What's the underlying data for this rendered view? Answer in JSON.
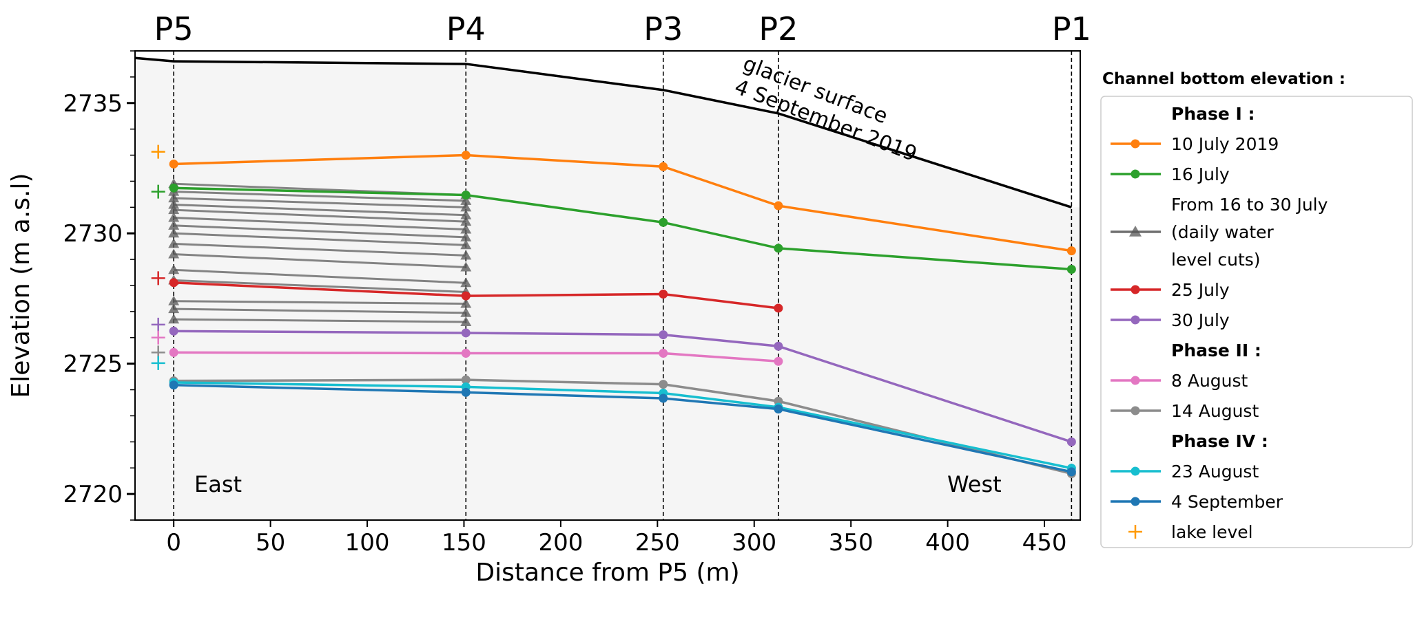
{
  "chart_data": {
    "type": "line",
    "xlabel": "Distance from P5 (m)",
    "ylabel": "Elevation (m a.s.l)",
    "xlim": [
      -20,
      468.5
    ],
    "ylim": [
      2719,
      2737
    ],
    "xticks": [
      0,
      50,
      100,
      150,
      200,
      250,
      300,
      350,
      400,
      450
    ],
    "yticks": [
      2720,
      2725,
      2730,
      2735
    ],
    "grid": false,
    "sections": [
      {
        "label": "P5",
        "x": 0
      },
      {
        "label": "P4",
        "x": 151
      },
      {
        "label": "P3",
        "x": 253
      },
      {
        "label": "P2",
        "x": 312.5
      },
      {
        "label": "P1",
        "x": 464
      }
    ],
    "annotations": {
      "glacier": [
        "glacier surface",
        "4 September 2019"
      ],
      "east": "East",
      "west": "West"
    },
    "glacier_surface": {
      "x": [
        -20,
        0,
        151,
        253,
        312.5,
        464
      ],
      "y": [
        2736.73,
        2736.6,
        2736.5,
        2735.5,
        2734.6,
        2731.0
      ],
      "color": "#000000"
    },
    "legend": {
      "title": "Channel bottom elevation :",
      "placement": "outside-right",
      "entries": [
        {
          "type": "header",
          "label": "Phase I :"
        },
        {
          "type": "series",
          "ref": 0
        },
        {
          "type": "series",
          "ref": 1
        },
        {
          "type": "cuts",
          "label": [
            "From 16 to 30 July",
            "(daily water",
            "level cuts)"
          ]
        },
        {
          "type": "series",
          "ref": 2
        },
        {
          "type": "series",
          "ref": 3
        },
        {
          "type": "header",
          "label": "Phase II :"
        },
        {
          "type": "series",
          "ref": 4
        },
        {
          "type": "series",
          "ref": 5
        },
        {
          "type": "header",
          "label": "Phase IV :"
        },
        {
          "type": "series",
          "ref": 6
        },
        {
          "type": "series",
          "ref": 7
        },
        {
          "type": "lake",
          "label": "lake level"
        }
      ]
    },
    "series": [
      {
        "name": "10 July 2019",
        "color": "#ff7f0e",
        "x": [
          0,
          151,
          253,
          312.5,
          464
        ],
        "y": [
          2732.66,
          2733.0,
          2732.56,
          2731.06,
          2729.33
        ]
      },
      {
        "name": "16 July",
        "color": "#2ca02c",
        "x": [
          0,
          151,
          253,
          312.5,
          464
        ],
        "y": [
          2731.74,
          2731.47,
          2730.42,
          2729.43,
          2728.62
        ]
      },
      {
        "name": "25 July",
        "color": "#d62728",
        "x": [
          0,
          151,
          253,
          312.5
        ],
        "y": [
          2728.11,
          2727.6,
          2727.67,
          2727.13
        ]
      },
      {
        "name": "30 July",
        "color": "#9467bd",
        "x": [
          0,
          151,
          253,
          312.5,
          464
        ],
        "y": [
          2726.25,
          2726.18,
          2726.11,
          2725.67,
          2722.0
        ]
      },
      {
        "name": "8 August",
        "color": "#e377c2",
        "x": [
          0,
          151,
          253,
          312.5
        ],
        "y": [
          2725.43,
          2725.4,
          2725.4,
          2725.09
        ]
      },
      {
        "name": "14 August",
        "color": "#8c8c8c",
        "x": [
          0,
          151,
          253,
          312.5,
          464
        ],
        "y": [
          2724.34,
          2724.38,
          2724.21,
          2723.56,
          2720.78
        ]
      },
      {
        "name": "23 August",
        "color": "#17becf",
        "x": [
          0,
          151,
          253,
          312.5,
          464
        ],
        "y": [
          2724.28,
          2724.11,
          2723.87,
          2723.33,
          2720.99
        ]
      },
      {
        "name": "4 September",
        "color": "#1f77b4",
        "x": [
          0,
          151,
          253,
          312.5,
          464
        ],
        "y": [
          2724.18,
          2723.9,
          2723.67,
          2723.26,
          2720.85
        ]
      }
    ],
    "daily_cuts": {
      "color": "#6e6e6e",
      "x": [
        0,
        151
      ],
      "y": [
        [
          2731.9,
          2731.47
        ],
        [
          2731.6,
          2731.25
        ],
        [
          2731.35,
          2731.0
        ],
        [
          2731.1,
          2730.7
        ],
        [
          2730.9,
          2730.45
        ],
        [
          2730.6,
          2730.15
        ],
        [
          2730.3,
          2729.85
        ],
        [
          2730.0,
          2729.55
        ],
        [
          2729.6,
          2729.15
        ],
        [
          2729.2,
          2728.7
        ],
        [
          2728.6,
          2728.1
        ],
        [
          2728.2,
          2727.75
        ],
        [
          2727.4,
          2727.3
        ],
        [
          2727.1,
          2726.95
        ],
        [
          2726.7,
          2726.6
        ]
      ]
    },
    "lake_level": {
      "x": -8,
      "points": [
        {
          "y": 2733.13,
          "color": "#ff9900"
        },
        {
          "y": 2731.6,
          "color": "#2ca02c"
        },
        {
          "y": 2728.28,
          "color": "#d62728"
        },
        {
          "y": 2726.5,
          "color": "#9467bd"
        },
        {
          "y": 2726.0,
          "color": "#e377c2"
        },
        {
          "y": 2725.43,
          "color": "#8c8c8c"
        },
        {
          "y": 2725.02,
          "color": "#17becf"
        }
      ],
      "legend_color": "#ff9900"
    }
  }
}
